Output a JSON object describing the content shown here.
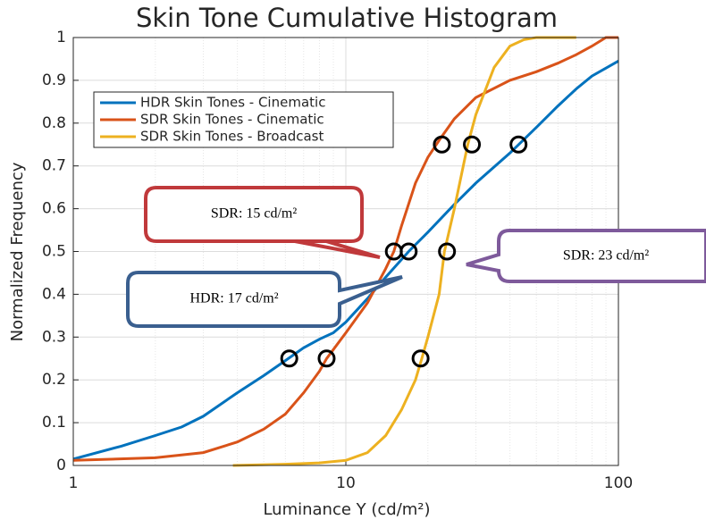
{
  "chart_data": {
    "type": "line",
    "title": "Skin Tone Cumulative Histogram",
    "xlabel": "Luminance Y (cd/m²)",
    "ylabel": "Normalized Frequency",
    "xscale": "log",
    "xlim": [
      1,
      100
    ],
    "ylim": [
      0,
      1
    ],
    "xticks": [
      1,
      10,
      100
    ],
    "xminorticks": [
      2,
      3,
      4,
      5,
      6,
      7,
      8,
      9,
      20,
      30,
      40,
      50,
      60,
      70,
      80,
      90
    ],
    "yticks": [
      0,
      0.1,
      0.2,
      0.3,
      0.4,
      0.5,
      0.6,
      0.7,
      0.8,
      0.9,
      1
    ],
    "grid": true,
    "legend": "upper left",
    "series": [
      {
        "name": "HDR Skin Tones - Cinematic",
        "color": "#0072bd",
        "x": [
          1,
          1.5,
          2,
          2.5,
          3,
          4,
          5,
          6,
          7,
          8,
          9,
          10,
          12,
          14,
          17,
          20,
          25,
          30,
          40,
          50,
          60,
          70,
          80,
          100
        ],
        "values": [
          0.015,
          0.045,
          0.07,
          0.09,
          0.115,
          0.17,
          0.21,
          0.245,
          0.275,
          0.295,
          0.31,
          0.335,
          0.39,
          0.44,
          0.5,
          0.545,
          0.61,
          0.66,
          0.73,
          0.79,
          0.84,
          0.88,
          0.91,
          0.945
        ]
      },
      {
        "name": "SDR Skin Tones - Cinematic",
        "color": "#d95319",
        "x": [
          1,
          2,
          3,
          4,
          5,
          6,
          7,
          8,
          8.5,
          10,
          12,
          14,
          15,
          16,
          18,
          20,
          22,
          25,
          30,
          40,
          50,
          60,
          70,
          80,
          90,
          100
        ],
        "values": [
          0.012,
          0.018,
          0.03,
          0.055,
          0.085,
          0.12,
          0.17,
          0.22,
          0.25,
          0.31,
          0.38,
          0.46,
          0.5,
          0.56,
          0.66,
          0.72,
          0.76,
          0.81,
          0.86,
          0.9,
          0.92,
          0.94,
          0.96,
          0.98,
          1,
          1
        ]
      },
      {
        "name": "SDR Skin Tones - Broadcast",
        "color": "#edb120",
        "x": [
          3.85,
          6,
          8,
          10,
          12,
          14,
          16,
          18,
          19,
          20,
          22,
          23,
          25,
          28,
          30,
          35,
          40,
          45,
          50,
          70
        ],
        "values": [
          0,
          0.003,
          0.006,
          0.012,
          0.03,
          0.07,
          0.13,
          0.2,
          0.25,
          0.3,
          0.4,
          0.5,
          0.6,
          0.75,
          0.82,
          0.93,
          0.98,
          0.995,
          1,
          1
        ]
      }
    ],
    "markers": {
      "x": [
        6.2,
        8.5,
        18.8,
        15,
        17,
        23.5,
        22.5,
        29,
        43
      ],
      "values": [
        0.25,
        0.25,
        0.25,
        0.5,
        0.5,
        0.5,
        0.75,
        0.75,
        0.75
      ]
    },
    "annotations": [
      {
        "text": "SDR: 15 cd/m²"
      },
      {
        "text": "HDR: 17 cd/m²"
      },
      {
        "text": "SDR: 23 cd/m²"
      }
    ]
  }
}
